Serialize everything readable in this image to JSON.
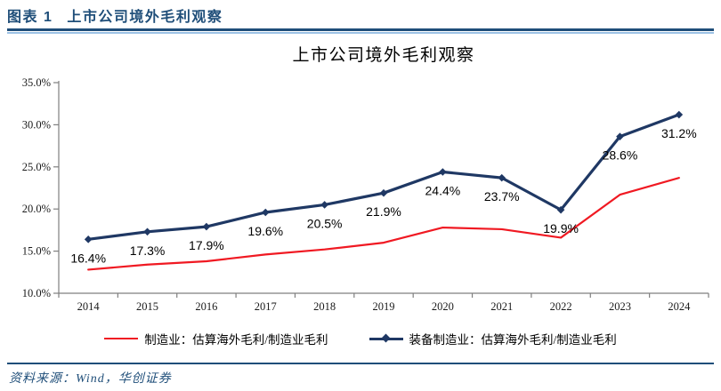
{
  "header": {
    "prefix": "图表 1",
    "title": "上市公司境外毛利观察"
  },
  "chart_data": {
    "type": "line",
    "title": "上市公司境外毛利观察",
    "categories": [
      "2014",
      "2015",
      "2016",
      "2017",
      "2018",
      "2019",
      "2020",
      "2021",
      "2022",
      "2023",
      "2024"
    ],
    "series": [
      {
        "name": "制造业：估算海外毛利/制造业毛利",
        "color": "#F01922",
        "line_width": 2.2,
        "marker": "none",
        "data_labels": false,
        "values": [
          12.8,
          13.4,
          13.8,
          14.6,
          15.2,
          16.0,
          17.8,
          17.6,
          16.6,
          21.7,
          23.7
        ]
      },
      {
        "name": "装备制造业：估算海外毛利/制造业毛利",
        "color": "#1F3864",
        "line_width": 3.2,
        "marker": "diamond",
        "data_labels": true,
        "values": [
          16.4,
          17.3,
          17.9,
          19.6,
          20.5,
          21.9,
          24.4,
          23.7,
          19.9,
          28.6,
          31.2
        ]
      }
    ],
    "ylim": [
      10,
      35
    ],
    "ytick_step": 5,
    "ytick_decimals": 1,
    "ytick_suffix": "%",
    "grid": "off",
    "legend_position": "bottom"
  },
  "footer": {
    "source": "资料来源：Wind，华创证券"
  },
  "colors": {
    "brand_navy": "#1F4E79",
    "rule_light": "#9CC2E5",
    "axis_gray": "#7F7F7F"
  }
}
